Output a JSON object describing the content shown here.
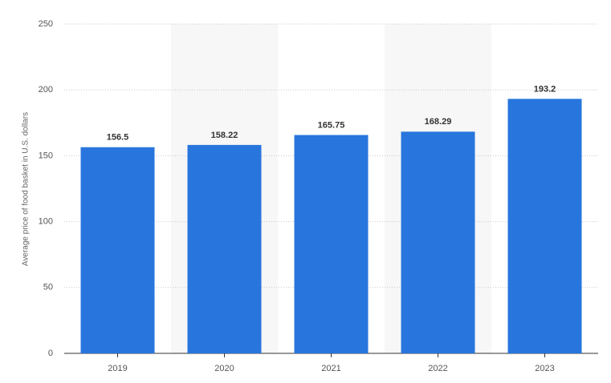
{
  "chart_data": {
    "type": "bar",
    "y_label": "Average price of food basket in U.S. dollars",
    "categories": [
      "2019",
      "2020",
      "2021",
      "2022",
      "2023"
    ],
    "values": [
      156.5,
      158.22,
      165.75,
      168.29,
      193.2
    ],
    "color": "#2876dd",
    "ylim": [
      0,
      250
    ],
    "yticks": [
      0,
      50,
      100,
      150,
      200,
      250
    ],
    "grid": true
  }
}
